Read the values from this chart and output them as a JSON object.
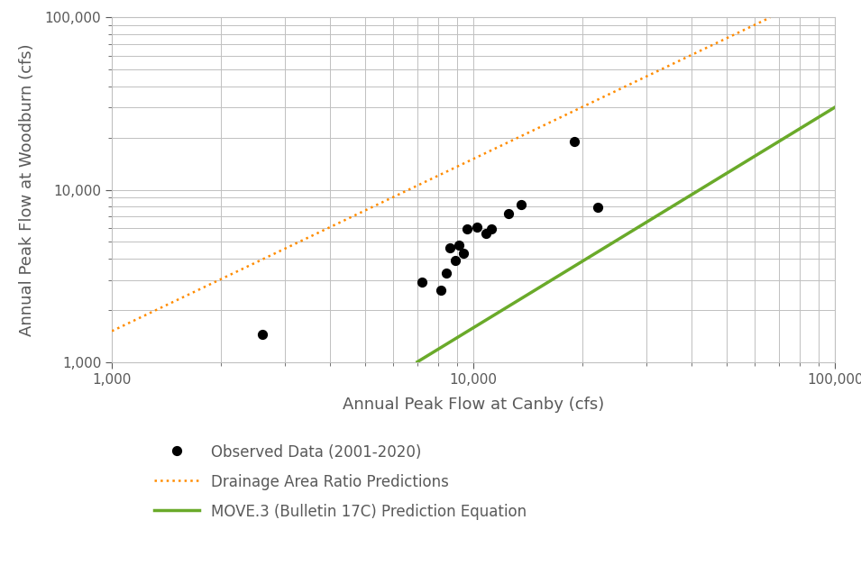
{
  "xlabel": "Annual Peak Flow at Canby (cfs)",
  "ylabel": "Annual Peak Flow at Woodburn (cfs)",
  "xlim": [
    1000,
    100000
  ],
  "ylim": [
    1000,
    100000
  ],
  "observed_x": [
    2600,
    7200,
    8100,
    8400,
    8600,
    8900,
    9100,
    9400,
    9600,
    10200,
    10800,
    11200,
    12500,
    13500,
    19000,
    22000
  ],
  "observed_y": [
    1450,
    2900,
    2600,
    3300,
    4600,
    3900,
    4800,
    4300,
    5900,
    6100,
    5600,
    5900,
    7300,
    8200,
    19000,
    7900
  ],
  "dar_slope_log": 1.0,
  "dar_intercept_log": 0.18,
  "move3_slope_log": 1.28,
  "move3_intercept_log": -1.92,
  "dar_color": "#FF8C00",
  "move3_color": "#6aaa2a",
  "obs_color": "#000000",
  "legend_labels": [
    "Observed Data (2001-2020)",
    "Drainage Area Ratio Predictions",
    "MOVE.3 (Bulletin 17C) Prediction Equation"
  ],
  "background_color": "#ffffff",
  "grid_color": "#c0c0c0",
  "axis_label_color": "#595959",
  "tick_label_color": "#595959",
  "xlabel_fontsize": 13,
  "ylabel_fontsize": 13,
  "tick_labelsize": 11,
  "legend_fontsize": 12,
  "dot_size": 50,
  "dar_linewidth": 1.8,
  "move3_linewidth": 2.5
}
